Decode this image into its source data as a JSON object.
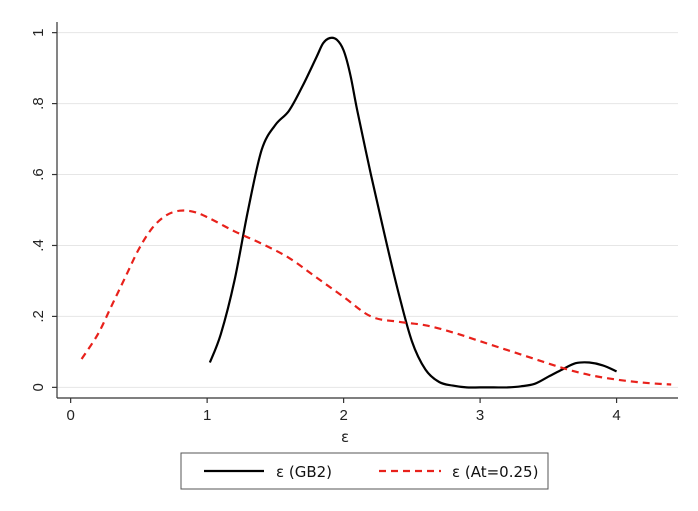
{
  "chart_data": {
    "type": "line",
    "title": "",
    "xlabel": "ε",
    "ylabel": "",
    "xlim": [
      -0.1,
      4.45
    ],
    "ylim": [
      -0.03,
      1.03
    ],
    "x_ticks": [
      0,
      1,
      2,
      3,
      4
    ],
    "x_tick_labels": [
      "0",
      "1",
      "2",
      "3",
      "4"
    ],
    "y_ticks": [
      0,
      0.2,
      0.4,
      0.6,
      0.8,
      1
    ],
    "y_tick_labels": [
      "0",
      ".2",
      ".4",
      ".6",
      ".8",
      "1"
    ],
    "grid": "horizontal",
    "legend_position": "bottom",
    "series": [
      {
        "name": "ε (GB2)",
        "color": "#000000",
        "dash": "solid",
        "x": [
          1.02,
          1.1,
          1.2,
          1.3,
          1.4,
          1.5,
          1.6,
          1.7,
          1.8,
          1.85,
          1.9,
          1.95,
          2.0,
          2.05,
          2.1,
          2.2,
          2.3,
          2.4,
          2.5,
          2.6,
          2.7,
          2.8,
          2.9,
          3.0,
          3.1,
          3.2,
          3.3,
          3.4,
          3.5,
          3.6,
          3.7,
          3.8,
          3.9,
          4.0
        ],
        "y": [
          0.07,
          0.15,
          0.3,
          0.5,
          0.67,
          0.74,
          0.78,
          0.85,
          0.93,
          0.97,
          0.985,
          0.98,
          0.95,
          0.88,
          0.78,
          0.6,
          0.43,
          0.27,
          0.13,
          0.05,
          0.015,
          0.005,
          0.0,
          0.0,
          0.0,
          0.0,
          0.003,
          0.01,
          0.03,
          0.05,
          0.068,
          0.07,
          0.062,
          0.045
        ]
      },
      {
        "name": "ε (At=0.25)",
        "color": "#e8211b",
        "dash": "dashed",
        "x": [
          0.08,
          0.2,
          0.3,
          0.4,
          0.5,
          0.6,
          0.7,
          0.8,
          0.9,
          1.0,
          1.2,
          1.4,
          1.6,
          1.8,
          2.0,
          2.2,
          2.4,
          2.6,
          2.8,
          3.0,
          3.2,
          3.4,
          3.6,
          3.8,
          4.0,
          4.2,
          4.4
        ],
        "y": [
          0.08,
          0.15,
          0.23,
          0.31,
          0.39,
          0.45,
          0.485,
          0.498,
          0.495,
          0.48,
          0.44,
          0.405,
          0.365,
          0.31,
          0.255,
          0.2,
          0.185,
          0.175,
          0.155,
          0.13,
          0.105,
          0.08,
          0.055,
          0.035,
          0.022,
          0.013,
          0.008
        ]
      }
    ]
  }
}
